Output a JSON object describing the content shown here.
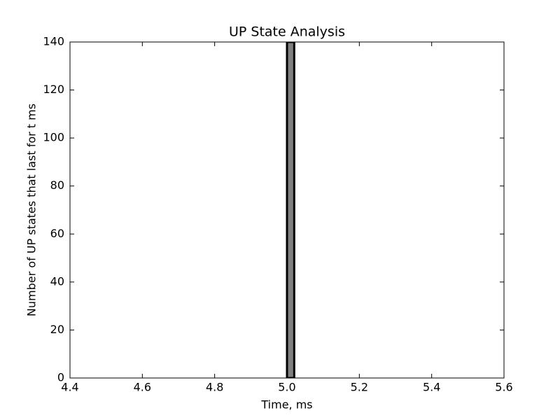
{
  "chart_data": {
    "type": "histogram",
    "title": "UP State Analysis",
    "x_label": "Time, ms",
    "y_label": "Number of UP states that last for t ms",
    "bins": [
      4.5,
      4.52,
      4.54,
      4.56,
      4.58,
      4.6,
      4.62,
      4.64,
      4.66,
      4.68,
      4.7,
      4.72,
      4.74,
      4.76,
      4.78,
      4.8,
      4.82,
      4.84,
      4.86,
      4.88,
      4.9,
      4.92,
      4.94,
      4.96,
      4.98,
      5.0,
      5.02,
      5.04,
      5.06,
      5.08,
      5.1,
      5.12,
      5.14,
      5.16,
      5.18,
      5.2,
      5.22,
      5.24,
      5.26,
      5.28,
      5.3,
      5.32,
      5.34,
      5.36,
      5.38,
      5.4,
      5.42,
      5.44,
      5.46,
      5.48,
      5.5
    ],
    "values": [
      0,
      0,
      0,
      0,
      0,
      0,
      0,
      0,
      0,
      0,
      0,
      0,
      0,
      0,
      0,
      0,
      0,
      0,
      0,
      0,
      0,
      0,
      0,
      0,
      0,
      140,
      0,
      0,
      0,
      0,
      0,
      0,
      0,
      0,
      0,
      0,
      0,
      0,
      0,
      0,
      0,
      0,
      0,
      0,
      0,
      0,
      0,
      0,
      0,
      0
    ],
    "color": "#808080",
    "edge_color": "#000000",
    "xlim": [
      4.4,
      5.6
    ],
    "xticks": [
      4.4,
      4.6,
      4.8,
      {
        "value": 5,
        "label": "5.0"
      },
      5.2,
      5.4,
      5.6
    ],
    "ylim": [
      0,
      140
    ],
    "yticks": [
      0,
      20,
      40,
      60,
      80,
      100,
      120,
      140
    ],
    "grid": false
  }
}
